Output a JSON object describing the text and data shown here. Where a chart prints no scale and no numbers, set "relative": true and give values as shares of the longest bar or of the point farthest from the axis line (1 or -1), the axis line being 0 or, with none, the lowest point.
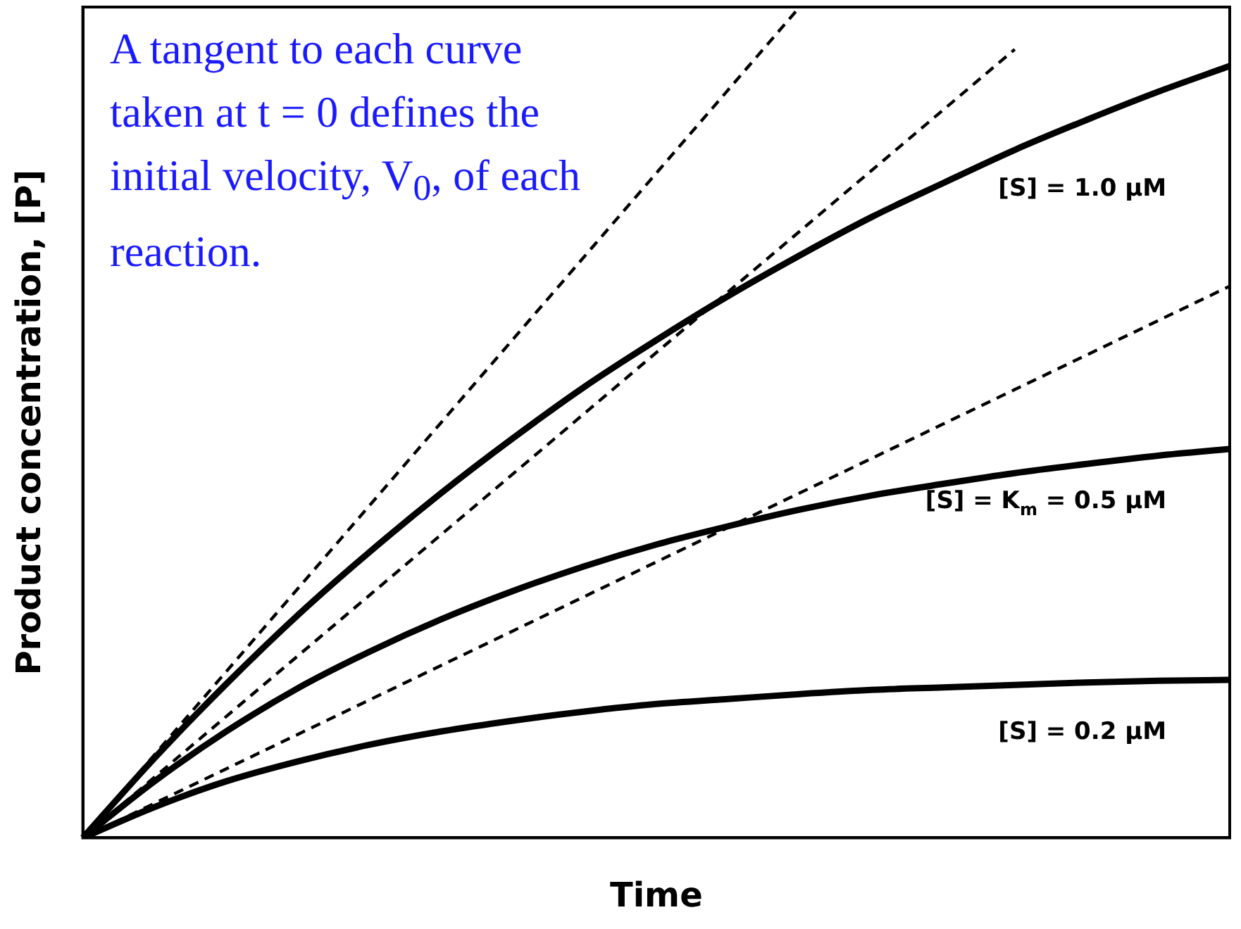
{
  "chart_data": {
    "type": "line",
    "relative": true,
    "xlabel": "Time",
    "ylabel": "Product concentration, [P]",
    "categories": [
      null,
      null,
      null,
      null,
      null,
      null,
      null,
      null,
      null,
      null,
      null,
      null,
      null,
      null,
      null,
      null,
      null
    ],
    "series": [
      {
        "name": "[S] = 1.0 μM",
        "color": "#000000",
        "line_style": "solid",
        "values": [
          0,
          0.096,
          0.185,
          0.268,
          0.344,
          0.415,
          0.481,
          0.543,
          0.599,
          0.652,
          0.701,
          0.747,
          0.788,
          0.828,
          0.864,
          0.898,
          0.929
        ]
      },
      {
        "name": "[S] = K$_{m}$ = 0.5 μM",
        "color": "#000000",
        "line_style": "solid",
        "values": [
          0,
          0.068,
          0.128,
          0.18,
          0.224,
          0.263,
          0.297,
          0.327,
          0.353,
          0.375,
          0.395,
          0.412,
          0.426,
          0.439,
          0.45,
          0.46,
          0.468
        ]
      },
      {
        "name": "[S] = 0.2 μM",
        "color": "#000000",
        "line_style": "solid",
        "values": [
          0,
          0.037,
          0.068,
          0.092,
          0.112,
          0.128,
          0.141,
          0.152,
          0.161,
          0.167,
          0.173,
          0.178,
          0.181,
          0.184,
          0.187,
          0.189,
          0.19
        ]
      },
      {
        "color": "#000000",
        "line_style": "dashed",
        "values": [
          0,
          0.1,
          0.2,
          0.3,
          0.4,
          0.5,
          0.6,
          0.7,
          0.8,
          0.9,
          1.0,
          null,
          null,
          null,
          null,
          null,
          null
        ]
      },
      {
        "color": "#000000",
        "line_style": "dashed",
        "values": [
          0,
          0.073,
          0.146,
          0.219,
          0.292,
          0.365,
          0.438,
          0.511,
          0.584,
          0.657,
          0.73,
          0.803,
          0.876,
          0.949,
          null,
          null,
          null
        ]
      },
      {
        "color": "#000000",
        "line_style": "dashed",
        "values": [
          0,
          0.0415,
          0.083,
          0.1245,
          0.166,
          0.2075,
          0.249,
          0.2905,
          0.332,
          0.3735,
          0.415,
          0.4565,
          0.498,
          0.5395,
          0.581,
          0.6225,
          0.664
        ]
      }
    ],
    "marker": "none",
    "grid": false,
    "legend": false,
    "annotations": [
      "A tangent to each curve taken at t = 0 defines the initial velocity, V$_{0}$, of each reaction."
    ]
  }
}
